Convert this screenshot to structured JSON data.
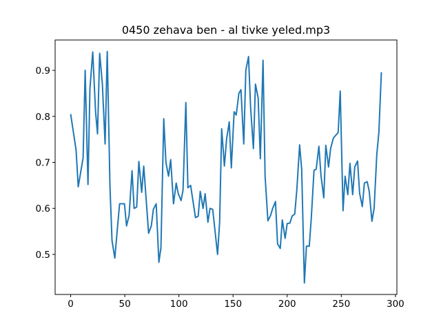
{
  "chart_data": {
    "type": "line",
    "title": "0450 zehava ben - al tivke yeled.mp3",
    "x": [
      0,
      5,
      7,
      11.5,
      13.4,
      16,
      17.8,
      20.4,
      23,
      24.8,
      26.8,
      29.3,
      31.8,
      33.8,
      36.3,
      38.2,
      40.8,
      43.3,
      45.2,
      49.7,
      51.6,
      54,
      56.7,
      58.6,
      61,
      63,
      65.6,
      67.5,
      72,
      74.5,
      76.4,
      79,
      81.5,
      83.4,
      86,
      88,
      90.4,
      92.4,
      95,
      97.5,
      99.4,
      102,
      103.8,
      106.4,
      108.3,
      110.8,
      115.3,
      117.8,
      119.7,
      122.3,
      124.2,
      126.8,
      128.7,
      131.2,
      135.7,
      137.6,
      139.5,
      142,
      144,
      146.5,
      148.4,
      151,
      152.9,
      155.4,
      157.3,
      159.9,
      161.8,
      164.3,
      166.2,
      168.8,
      170.7,
      173.2,
      175.2,
      177.7,
      179.6,
      182.2,
      184.7,
      186.6,
      189.2,
      191.1,
      193.6,
      195.5,
      198.1,
      200,
      202.5,
      204.5,
      207,
      208.9,
      211.5,
      213.4,
      215.9,
      217.8,
      220.4,
      222.3,
      224.8,
      226.8,
      229.3,
      231.2,
      233.8,
      235.7,
      238.2,
      240.1,
      242.7,
      247.1,
      249,
      251.6,
      253.5,
      256,
      258,
      260.5,
      262.4,
      265,
      266.9,
      269.4,
      271.3,
      273.9,
      275.8,
      278.3,
      280.3,
      282.8,
      284.7,
      287
    ],
    "series": [
      {
        "color": "#1f77b4",
        "values": [
          0.805,
          0.727,
          0.647,
          0.71,
          0.9,
          0.652,
          0.86,
          0.94,
          0.81,
          0.762,
          0.937,
          0.87,
          0.74,
          0.941,
          0.648,
          0.53,
          0.492,
          0.56,
          0.61,
          0.61,
          0.562,
          0.585,
          0.682,
          0.6,
          0.603,
          0.702,
          0.635,
          0.692,
          0.546,
          0.562,
          0.598,
          0.61,
          0.483,
          0.515,
          0.795,
          0.7,
          0.67,
          0.706,
          0.61,
          0.655,
          0.632,
          0.617,
          0.64,
          0.83,
          0.645,
          0.65,
          0.58,
          0.583,
          0.637,
          0.6,
          0.632,
          0.57,
          0.6,
          0.598,
          0.5,
          0.57,
          0.773,
          0.692,
          0.75,
          0.788,
          0.688,
          0.81,
          0.803,
          0.85,
          0.858,
          0.74,
          0.9,
          0.93,
          0.82,
          0.73,
          0.87,
          0.84,
          0.708,
          0.922,
          0.67,
          0.573,
          0.585,
          0.6,
          0.615,
          0.523,
          0.513,
          0.575,
          0.535,
          0.567,
          0.568,
          0.583,
          0.588,
          0.64,
          0.738,
          0.685,
          0.438,
          0.518,
          0.518,
          0.58,
          0.683,
          0.685,
          0.735,
          0.672,
          0.623,
          0.737,
          0.69,
          0.73,
          0.753,
          0.765,
          0.855,
          0.595,
          0.67,
          0.63,
          0.698,
          0.63,
          0.69,
          0.703,
          0.633,
          0.604,
          0.655,
          0.658,
          0.637,
          0.572,
          0.6,
          0.718,
          0.765,
          0.896
        ]
      }
    ],
    "xlim": [
      -14.35,
      301.35
    ],
    "xticks": [
      0,
      50,
      100,
      150,
      200,
      250,
      300
    ],
    "ylim": [
      0.413,
      0.966
    ],
    "yticks": [
      0.5,
      0.6,
      0.7,
      0.8,
      0.9
    ]
  }
}
